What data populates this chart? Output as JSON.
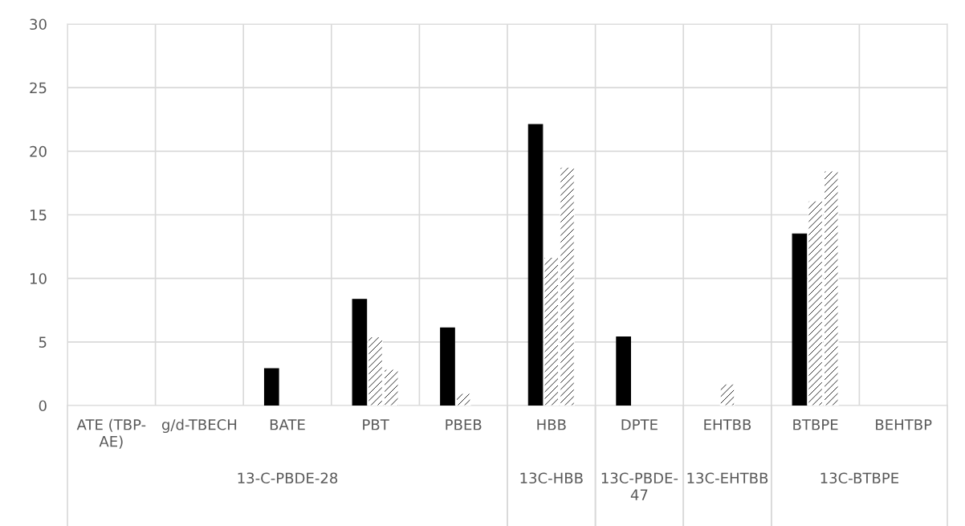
{
  "chart_data": {
    "type": "bar",
    "categories": [
      "ATE (TBP-AE)",
      "g/d-TBECH",
      "BATE",
      "PBT",
      "PBEB",
      "HBB",
      "DPTE",
      "EHTBB",
      "BTBPE",
      "BEHTBP"
    ],
    "series": [
      {
        "color": "#000000",
        "values": [
          0,
          0,
          2.9,
          8.35,
          6.1,
          22.1,
          5.4,
          0,
          13.5,
          0
        ]
      },
      {
        "color": "#ffffff",
        "values": [
          0,
          0,
          0,
          5.4,
          0.95,
          11.65,
          0,
          1.7,
          16.1,
          0
        ]
      },
      {
        "color": "#ffffff",
        "values": [
          0,
          0,
          0,
          2.85,
          0,
          18.75,
          0,
          0,
          18.45,
          0
        ]
      }
    ],
    "annotations": [
      "13-C-PBDE-28",
      "13C-HBB",
      "13C-PBDE-47",
      "13C-EHTBB",
      "13C-BTBPE"
    ],
    "ylim": [
      0,
      30
    ],
    "yticks": [
      0,
      5,
      10,
      15,
      20,
      25,
      30
    ],
    "grid": true,
    "legend": false
  }
}
